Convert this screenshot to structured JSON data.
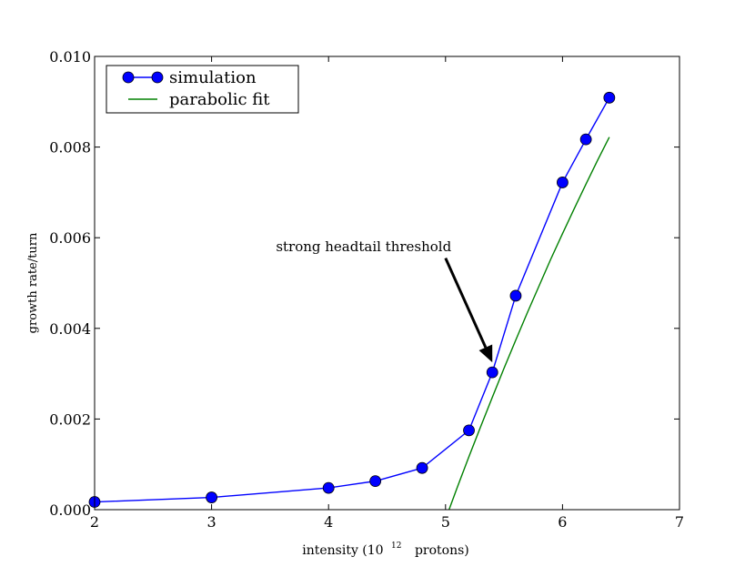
{
  "chart_data": {
    "type": "line",
    "title": "",
    "xlabel": "intensity (10",
    "xlabel_exponent": "12",
    "xlabel_suffix": "protons)",
    "ylabel": "growth rate/turn",
    "xlim": [
      2,
      7
    ],
    "ylim": [
      0.0,
      0.01
    ],
    "grid": false,
    "legend_position": "top-left",
    "x_ticks": [
      {
        "value": 2,
        "label": "2"
      },
      {
        "value": 3,
        "label": "3"
      },
      {
        "value": 4,
        "label": "4"
      },
      {
        "value": 5,
        "label": "5"
      },
      {
        "value": 6,
        "label": "6"
      },
      {
        "value": 7,
        "label": "7"
      }
    ],
    "y_ticks": [
      {
        "value": 0.0,
        "label": "0.000"
      },
      {
        "value": 0.002,
        "label": "0.002"
      },
      {
        "value": 0.004,
        "label": "0.004"
      },
      {
        "value": 0.006,
        "label": "0.006"
      },
      {
        "value": 0.008,
        "label": "0.008"
      },
      {
        "value": 0.01,
        "label": "0.010"
      }
    ],
    "series": [
      {
        "name": "simulation",
        "color": "#0000ff",
        "marker": "circle",
        "x": [
          2.0,
          3.0,
          4.0,
          4.4,
          4.8,
          5.2,
          5.4,
          5.6,
          6.0,
          6.2,
          6.4
        ],
        "y": [
          0.00017,
          0.00027,
          0.00048,
          0.00063,
          0.00092,
          0.00175,
          0.00303,
          0.00472,
          0.00722,
          0.00817,
          0.00909
        ]
      },
      {
        "name": "parabolic fit",
        "color": "#008000",
        "marker": "none",
        "x": [
          5.03,
          5.1,
          5.2,
          5.3,
          5.4,
          5.5,
          5.6,
          5.7,
          5.8,
          5.9,
          6.0,
          6.1,
          6.2,
          6.3,
          6.4
        ],
        "y": [
          0.0,
          0.00049,
          0.00117,
          0.00183,
          0.00248,
          0.00312,
          0.00374,
          0.00435,
          0.00494,
          0.00553,
          0.00609,
          0.00664,
          0.00718,
          0.00771,
          0.00822
        ]
      }
    ],
    "annotations": [
      {
        "text": "strong headtail threshold",
        "text_at": [
          4.3,
          0.0057
        ],
        "arrow_to": [
          5.4,
          0.00325
        ]
      }
    ]
  }
}
